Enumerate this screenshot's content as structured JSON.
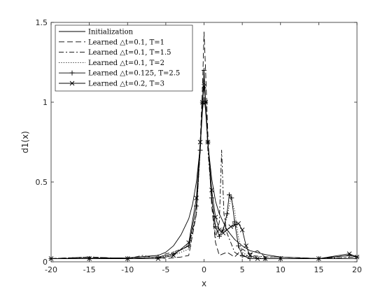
{
  "chart_data": {
    "type": "line",
    "xlabel": "x",
    "ylabel": "d1(x)",
    "xlim": [
      -20,
      20
    ],
    "ylim": [
      0,
      1.5
    ],
    "xticks": [
      -20,
      -15,
      -10,
      -5,
      0,
      5,
      10,
      15,
      20
    ],
    "xtick_labels": [
      "-20",
      "-15",
      "-10",
      "-5",
      "0",
      "5",
      "10",
      "15",
      "20"
    ],
    "yticks": [
      0,
      0.5,
      1,
      1.5
    ],
    "ytick_labels": [
      "0",
      "0.5",
      "1",
      "1.5"
    ],
    "grid": false,
    "legend_position": "top-left",
    "series": [
      {
        "name": "Initialization",
        "style": "solid",
        "x": [
          -20,
          -10,
          -6,
          -5,
          -4,
          -3,
          -2,
          -1.5,
          -1,
          -0.5,
          -0.2,
          0,
          0.2,
          0.5,
          1,
          1.5,
          2,
          3,
          4,
          5,
          6,
          8,
          10,
          15,
          20
        ],
        "y": [
          0.02,
          0.025,
          0.04,
          0.06,
          0.1,
          0.17,
          0.27,
          0.36,
          0.5,
          0.72,
          0.95,
          1.03,
          0.95,
          0.74,
          0.52,
          0.38,
          0.3,
          0.2,
          0.14,
          0.1,
          0.07,
          0.045,
          0.03,
          0.02,
          0.02
        ]
      },
      {
        "name": "Learned △t=0.1, T=1",
        "style": "dashed",
        "x": [
          -20,
          -15,
          -10,
          -6,
          -5,
          -3,
          -2,
          -1,
          -0.5,
          -0.2,
          0,
          0.2,
          0.5,
          1,
          1.5,
          2,
          2.5,
          3,
          4,
          5,
          6,
          7,
          8,
          10,
          15,
          19,
          20
        ],
        "y": [
          0.02,
          0.03,
          0.02,
          0.03,
          0.02,
          0.03,
          0.04,
          0.3,
          0.75,
          1.1,
          1.44,
          1.2,
          0.8,
          0.35,
          0.12,
          0.04,
          0.05,
          0.06,
          0.03,
          0.08,
          0.05,
          0.07,
          0.03,
          0.03,
          0.02,
          0.04,
          0.03
        ]
      },
      {
        "name": "Learned △t=0.1, T=1.5",
        "style": "dashdot",
        "x": [
          -20,
          -15,
          -10,
          -8,
          -6,
          -5,
          -4,
          -2,
          -1,
          -0.5,
          -0.2,
          0,
          0.2,
          0.5,
          1,
          1.5,
          2,
          2.3,
          2.6,
          3,
          3.5,
          4,
          5,
          6,
          8,
          10,
          15,
          20
        ],
        "y": [
          0.02,
          0.03,
          0.02,
          0.04,
          0.02,
          0.05,
          0.06,
          0.1,
          0.3,
          0.7,
          1.0,
          1.15,
          1.0,
          0.7,
          0.4,
          0.15,
          0.25,
          0.7,
          0.3,
          0.18,
          0.12,
          0.06,
          0.03,
          0.04,
          0.03,
          0.03,
          0.02,
          0.03
        ]
      },
      {
        "name": "Learned △t=0.1, T=2",
        "style": "dotted",
        "x": [
          -20,
          -15,
          -10,
          -6,
          -4,
          -2,
          -1,
          -0.5,
          -0.2,
          0,
          0.2,
          0.5,
          1,
          1.5,
          2,
          2.5,
          3,
          3.5,
          4,
          4.5,
          5,
          6,
          8,
          10,
          15,
          20
        ],
        "y": [
          0.02,
          0.02,
          0.02,
          0.03,
          0.04,
          0.08,
          0.3,
          0.7,
          1.0,
          1.13,
          1.0,
          0.75,
          0.4,
          0.22,
          0.18,
          0.2,
          0.28,
          0.4,
          0.32,
          0.15,
          0.06,
          0.03,
          0.02,
          0.02,
          0.02,
          0.03
        ]
      },
      {
        "name": "Learned △t=0.125, T=2.5",
        "style": "plus",
        "x": [
          -20,
          -15,
          -10,
          -6,
          -4,
          -2,
          -1,
          -0.5,
          -0.2,
          0,
          0.2,
          0.5,
          1,
          1.5,
          2,
          2.5,
          3,
          3.3,
          3.6,
          4,
          4.5,
          5,
          6,
          8,
          10,
          15,
          19,
          20
        ],
        "y": [
          0.02,
          0.02,
          0.02,
          0.03,
          0.05,
          0.1,
          0.35,
          0.7,
          1.0,
          1.2,
          1.0,
          0.75,
          0.4,
          0.22,
          0.16,
          0.2,
          0.3,
          0.42,
          0.4,
          0.25,
          0.1,
          0.04,
          0.02,
          0.02,
          0.02,
          0.02,
          0.04,
          0.03
        ]
      },
      {
        "name": "Learned △t=0.2, T=3",
        "style": "cross",
        "x": [
          -20,
          -15,
          -10,
          -6,
          -4,
          -2,
          -1,
          -0.5,
          -0.2,
          0,
          0.2,
          0.5,
          1,
          1.5,
          2,
          2.5,
          3,
          3.5,
          4,
          4.5,
          5,
          5.5,
          6,
          7,
          8,
          10,
          15,
          19,
          20
        ],
        "y": [
          0.02,
          0.02,
          0.02,
          0.02,
          0.04,
          0.12,
          0.4,
          0.75,
          1.0,
          1.1,
          1.0,
          0.75,
          0.45,
          0.28,
          0.2,
          0.18,
          0.2,
          0.22,
          0.23,
          0.24,
          0.2,
          0.1,
          0.04,
          0.02,
          0.02,
          0.02,
          0.02,
          0.05,
          0.03
        ]
      }
    ]
  }
}
